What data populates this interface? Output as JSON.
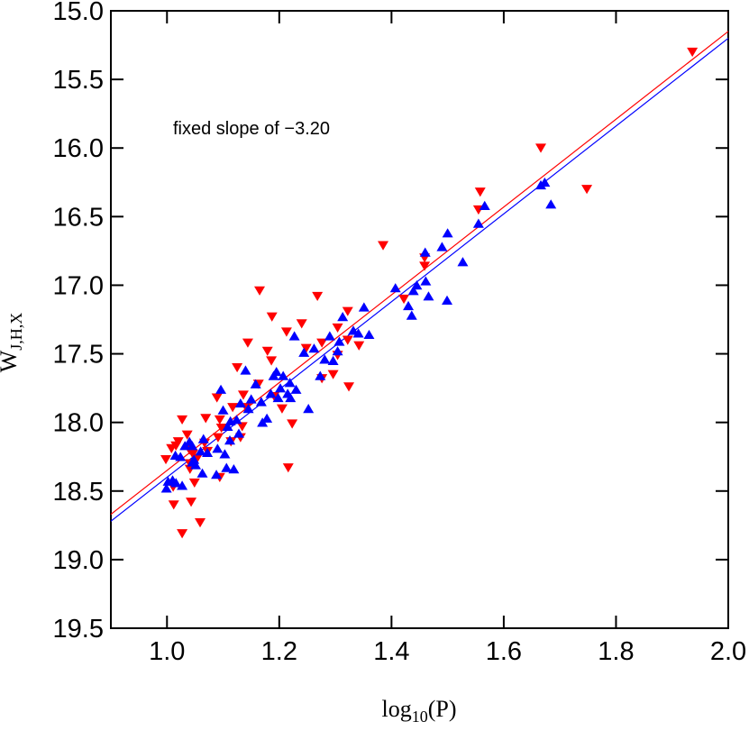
{
  "chart_data": {
    "type": "scatter",
    "annotation": "fixed slope of −3.20",
    "x_label": "log",
    "x_label_subscript": "10",
    "x_label_suffix": "(P)",
    "y_label": "W",
    "y_label_subscript": "J,H,X",
    "xlim": [
      0.9,
      2.0
    ],
    "xticks": [
      {
        "value": 1.0,
        "label": "1.0"
      },
      {
        "value": 1.2,
        "label": "1.2"
      },
      {
        "value": 1.4,
        "label": "1.4"
      },
      {
        "value": 1.6,
        "label": "1.6"
      },
      {
        "value": 1.8,
        "label": "1.8"
      },
      {
        "value": 2.0,
        "label": "2.0"
      }
    ],
    "ylim": [
      15.0,
      19.5
    ],
    "invert_y": true,
    "yticks": [
      {
        "value": 15,
        "label": "15.0"
      },
      15.5,
      {
        "value": 16,
        "label": "16.0"
      },
      16.5,
      {
        "value": 17,
        "label": "17.0"
      },
      17.5,
      {
        "value": 18,
        "label": "18.0"
      },
      18.5,
      {
        "value": 19,
        "label": "19.0"
      },
      19.5
    ],
    "series": [
      {
        "color": "#ff0000",
        "marker": "triangle-down",
        "x": [
          1.936,
          1.666,
          1.748,
          1.558,
          1.555,
          1.385,
          1.459,
          1.459,
          1.422,
          1.165,
          1.268,
          1.322,
          1.187,
          1.24,
          1.304,
          1.213,
          1.322,
          1.144,
          1.179,
          1.248,
          1.276,
          1.342,
          1.304,
          1.296,
          1.186,
          1.125,
          1.324,
          1.276,
          1.136,
          1.163,
          1.089,
          1.117,
          1.141,
          1.191,
          1.205,
          1.094,
          1.069,
          1.027,
          1.134,
          1.223,
          1.097,
          1.131,
          1.114,
          1.036,
          1.091,
          1.02,
          1.067,
          1.016,
          1.008,
          1.04,
          1.072,
          1.046,
          1.054,
          0.998,
          1.041,
          1.041,
          1.216,
          1.094,
          1.049,
          1.011,
          1.012,
          1.043,
          1.059,
          1.027
        ],
        "values": [
          15.3,
          16.0,
          16.3,
          16.32,
          16.45,
          16.71,
          16.8,
          16.86,
          17.1,
          17.04,
          17.08,
          17.19,
          17.23,
          17.28,
          17.31,
          17.34,
          17.4,
          17.42,
          17.48,
          17.46,
          17.42,
          17.44,
          17.51,
          17.65,
          17.55,
          17.6,
          17.74,
          17.68,
          17.8,
          17.72,
          17.82,
          17.89,
          17.89,
          17.81,
          17.9,
          17.98,
          17.97,
          17.98,
          18.03,
          18.01,
          18.04,
          18.11,
          18.14,
          18.09,
          18.11,
          18.14,
          18.15,
          18.17,
          18.19,
          18.2,
          18.21,
          18.23,
          18.26,
          18.27,
          18.3,
          18.34,
          18.33,
          18.4,
          18.44,
          18.47,
          18.6,
          18.58,
          18.73,
          18.81
        ]
      },
      {
        "color": "#0000ff",
        "marker": "triangle-up",
        "x": [
          1.666,
          1.673,
          1.684,
          1.566,
          1.555,
          1.527,
          1.5,
          1.49,
          1.499,
          1.46,
          1.461,
          1.466,
          1.439,
          1.43,
          1.407,
          1.436,
          1.445,
          1.351,
          1.36,
          1.341,
          1.332,
          1.313,
          1.307,
          1.304,
          1.29,
          1.296,
          1.281,
          1.273,
          1.262,
          1.244,
          1.252,
          1.227,
          1.23,
          1.207,
          1.202,
          1.195,
          1.19,
          1.198,
          1.185,
          1.168,
          1.178,
          1.158,
          1.14,
          1.15,
          1.145,
          1.131,
          1.124,
          1.113,
          1.096,
          1.1,
          1.108,
          1.128,
          1.112,
          1.09,
          1.103,
          1.119,
          1.106,
          1.088,
          1.063,
          1.072,
          1.048,
          1.045,
          1.04,
          1.032,
          1.024,
          1.015,
          1.01,
          1.002,
          0.999,
          1.016,
          1.027,
          1.045,
          1.051,
          1.06,
          1.065,
          1.17,
          1.215,
          1.22,
          1.219
        ],
        "values": [
          16.27,
          16.25,
          16.41,
          16.42,
          16.55,
          16.83,
          16.62,
          16.72,
          17.11,
          16.76,
          16.97,
          17.08,
          17.04,
          17.15,
          17.02,
          17.22,
          17.0,
          17.16,
          17.36,
          17.35,
          17.33,
          17.23,
          17.41,
          17.48,
          17.37,
          17.55,
          17.54,
          17.66,
          17.46,
          17.49,
          17.9,
          17.37,
          17.76,
          17.66,
          17.75,
          17.63,
          17.66,
          17.82,
          17.79,
          17.85,
          17.97,
          17.72,
          17.62,
          17.83,
          17.9,
          17.86,
          17.98,
          17.99,
          17.76,
          17.91,
          18.03,
          18.08,
          18.13,
          18.19,
          18.23,
          18.34,
          18.33,
          18.38,
          18.37,
          18.22,
          18.27,
          18.17,
          18.14,
          18.17,
          18.25,
          18.24,
          18.42,
          18.43,
          18.48,
          18.44,
          18.46,
          18.29,
          18.31,
          18.21,
          18.12,
          18.0,
          17.79,
          17.82,
          17.71
        ]
      }
    ],
    "fit_lines": [
      {
        "color": "#ff0000",
        "x": [
          0.9,
          2.0
        ],
        "values": [
          18.67,
          15.15
        ]
      },
      {
        "color": "#0000ff",
        "x": [
          0.9,
          2.0
        ],
        "values": [
          18.72,
          15.2
        ]
      }
    ]
  }
}
